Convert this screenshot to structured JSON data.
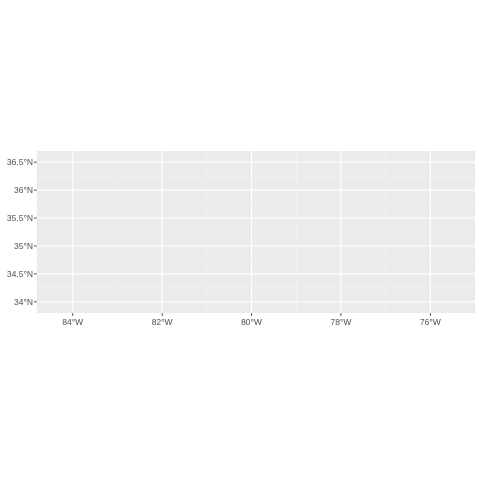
{
  "chart_data": {
    "type": "map",
    "title": "",
    "xlabel": "",
    "ylabel": "",
    "xlim": [
      -84.8,
      -75.0
    ],
    "ylim": [
      33.8,
      36.7
    ],
    "grid": true,
    "colors": {
      "panel_background": "#ebebeb",
      "grid_major": "#ffffff",
      "grid_minor": "#f4f4f4",
      "tick_text": "#4d4d4d",
      "tick_mark": "#333333"
    },
    "x_ticks": [
      {
        "value": -84,
        "label": "84°W"
      },
      {
        "value": -82,
        "label": "82°W"
      },
      {
        "value": -80,
        "label": "80°W"
      },
      {
        "value": -78,
        "label": "78°W"
      },
      {
        "value": -76,
        "label": "76°W"
      }
    ],
    "y_ticks": [
      {
        "value": 36.5,
        "label": "36.5°N"
      },
      {
        "value": 36.0,
        "label": "36°N"
      },
      {
        "value": 35.5,
        "label": "35.5°N"
      },
      {
        "value": 35.0,
        "label": "35°N"
      },
      {
        "value": 34.5,
        "label": "34.5°N"
      },
      {
        "value": 34.0,
        "label": "34°N"
      }
    ]
  }
}
